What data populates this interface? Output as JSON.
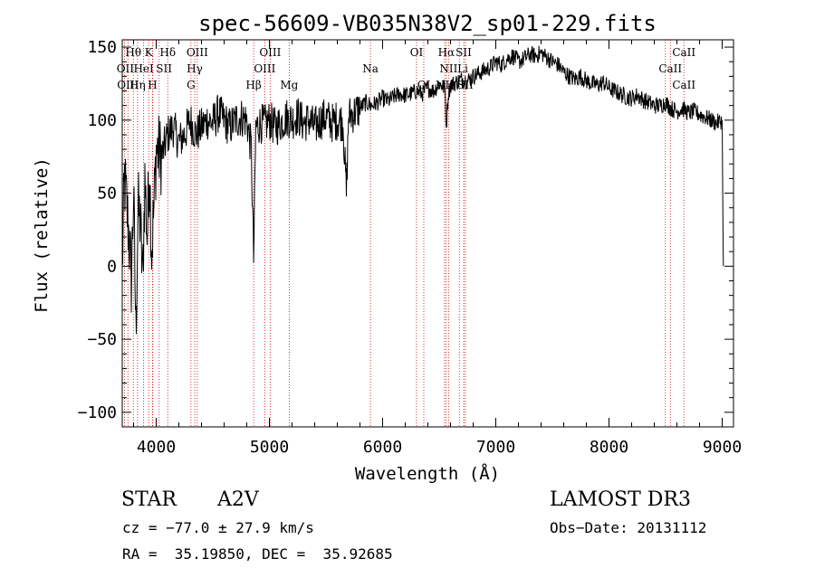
{
  "chart_data": {
    "type": "line",
    "title": "spec-56609-VB035N38V2_sp01-229.fits",
    "xlabel": "Wavelength (Å)",
    "ylabel": "Flux (relative)",
    "xlim": [
      3700,
      9100
    ],
    "ylim": [
      -110,
      155
    ],
    "xticks": [
      4000,
      5000,
      6000,
      7000,
      8000,
      9000
    ],
    "yticks": [
      -100,
      -50,
      0,
      50,
      100,
      150
    ],
    "grid": false,
    "series": [
      {
        "name": "flux",
        "x": [
          3700,
          3720,
          3740,
          3760,
          3780,
          3800,
          3820,
          3840,
          3860,
          3880,
          3900,
          3920,
          3940,
          3960,
          3980,
          4000,
          4050,
          4100,
          4150,
          4200,
          4250,
          4300,
          4350,
          4400,
          4450,
          4500,
          4550,
          4600,
          4650,
          4700,
          4750,
          4800,
          4840,
          4861,
          4880,
          4920,
          4960,
          5000,
          5050,
          5100,
          5150,
          5200,
          5250,
          5300,
          5350,
          5400,
          5450,
          5500,
          5550,
          5600,
          5650,
          5680,
          5700,
          5750,
          5800,
          5850,
          5900,
          5950,
          6000,
          6050,
          6100,
          6150,
          6200,
          6250,
          6300,
          6350,
          6400,
          6450,
          6500,
          6550,
          6563,
          6580,
          6600,
          6650,
          6700,
          6750,
          6800,
          6850,
          6900,
          6950,
          7000,
          7050,
          7100,
          7150,
          7200,
          7250,
          7300,
          7350,
          7400,
          7450,
          7500,
          7550,
          7600,
          7650,
          7700,
          7750,
          7800,
          7850,
          7900,
          7950,
          8000,
          8050,
          8100,
          8150,
          8200,
          8250,
          8300,
          8350,
          8400,
          8450,
          8500,
          8550,
          8600,
          8650,
          8700,
          8750,
          8800,
          8850,
          8900,
          8950,
          9000,
          9005,
          9010
        ],
        "y": [
          0,
          60,
          40,
          20,
          -10,
          50,
          -45,
          40,
          30,
          -10,
          60,
          20,
          70,
          10,
          40,
          80,
          75,
          90,
          95,
          85,
          90,
          100,
          90,
          95,
          100,
          98,
          105,
          100,
          95,
          100,
          102,
          100,
          80,
          5,
          95,
          98,
          97,
          100,
          95,
          98,
          102,
          100,
          103,
          98,
          100,
          95,
          100,
          102,
          98,
          100,
          99,
          50,
          103,
          105,
          108,
          112,
          110,
          112,
          115,
          113,
          116,
          118,
          117,
          118,
          120,
          118,
          122,
          120,
          125,
          122,
          95,
          118,
          124,
          126,
          128,
          127,
          130,
          132,
          134,
          136,
          140,
          138,
          142,
          144,
          140,
          142,
          145,
          144,
          146,
          143,
          140,
          138,
          133,
          130,
          128,
          130,
          127,
          125,
          124,
          126,
          122,
          120,
          118,
          116,
          115,
          117,
          114,
          112,
          110,
          110,
          112,
          108,
          106,
          108,
          105,
          106,
          104,
          102,
          100,
          98,
          100,
          50,
          0
        ]
      }
    ],
    "lines": {
      "x": [
        3720,
        3750,
        3798,
        3835,
        3889,
        3934,
        3968,
        3970,
        4026,
        4102,
        4307,
        4340,
        4363,
        4861,
        4959,
        5007,
        5175,
        5893,
        6300,
        6364,
        6548,
        6563,
        6583,
        6678,
        6716,
        6731,
        8498,
        8542,
        8662
      ],
      "labels": [
        {
          "text": "Hθ",
          "x": 3798,
          "row": 1
        },
        {
          "text": "K",
          "x": 3934,
          "row": 1
        },
        {
          "text": "Hδ",
          "x": 4102,
          "row": 1
        },
        {
          "text": "OII",
          "x": 3727,
          "row": 2
        },
        {
          "text": "HeI",
          "x": 3889,
          "row": 2
        },
        {
          "text": "SII",
          "x": 4069,
          "row": 2
        },
        {
          "text": "OIII",
          "x": 3750,
          "row": 3
        },
        {
          "text": "Hη",
          "x": 3835,
          "row": 3
        },
        {
          "text": "H",
          "x": 3968,
          "row": 3
        },
        {
          "text": "OIII",
          "x": 4363,
          "row": 1
        },
        {
          "text": "Hγ",
          "x": 4340,
          "row": 2
        },
        {
          "text": "G",
          "x": 4307,
          "row": 3
        },
        {
          "text": "OIII",
          "x": 5007,
          "row": 1
        },
        {
          "text": "OIII",
          "x": 4959,
          "row": 2
        },
        {
          "text": "Hβ",
          "x": 4861,
          "row": 3
        },
        {
          "text": "Mg",
          "x": 5175,
          "row": 3
        },
        {
          "text": "Na",
          "x": 5893,
          "row": 2
        },
        {
          "text": "OI",
          "x": 6300,
          "row": 1
        },
        {
          "text": "OI",
          "x": 6364,
          "row": 3
        },
        {
          "text": "Hα",
          "x": 6563,
          "row": 1
        },
        {
          "text": "SII",
          "x": 6716,
          "row": 1
        },
        {
          "text": "NII",
          "x": 6583,
          "row": 2
        },
        {
          "text": "Li",
          "x": 6708,
          "row": 2
        },
        {
          "text": "NII",
          "x": 6548,
          "row": 3
        },
        {
          "text": "SII",
          "x": 6731,
          "row": 3
        },
        {
          "text": "CaII",
          "x": 8662,
          "row": 1
        },
        {
          "text": "CaII",
          "x": 8542,
          "row": 2
        },
        {
          "text": "CaII",
          "x": 8662,
          "row": 3
        }
      ]
    }
  },
  "info": {
    "class_label": "STAR",
    "subclass": "A2V",
    "survey": "LAMOST DR3",
    "cz": "cz = −77.0 ± 27.9 km/s",
    "obs_date": "Obs−Date: 20131112",
    "coords": "RA =  35.19850, DEC =  35.92685"
  }
}
